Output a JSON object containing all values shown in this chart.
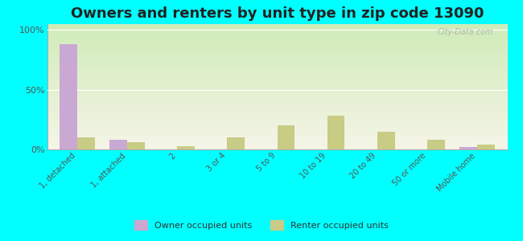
{
  "title": "Owners and renters by unit type in zip code 13090",
  "categories": [
    "1, detached",
    "1, attached",
    "2",
    "3 or 4",
    "5 to 9",
    "10 to 19",
    "20 to 49",
    "50 or more",
    "Mobile home"
  ],
  "owner_values": [
    88,
    8,
    0,
    0,
    0,
    0,
    0,
    0,
    2
  ],
  "renter_values": [
    10,
    6,
    3,
    10,
    20,
    28,
    15,
    8,
    4
  ],
  "owner_color": "#c9a8d4",
  "renter_color": "#c8cc85",
  "background_color": "#00ffff",
  "grad_top": "#d0ecb8",
  "grad_bottom": "#f5f5e8",
  "yticks": [
    0,
    50,
    100
  ],
  "ylabels": [
    "0%",
    "50%",
    "100%"
  ],
  "ylim": [
    0,
    105
  ],
  "bar_width": 0.35,
  "title_fontsize": 13,
  "legend_owner": "Owner occupied units",
  "legend_renter": "Renter occupied units",
  "watermark": "City-Data.com"
}
